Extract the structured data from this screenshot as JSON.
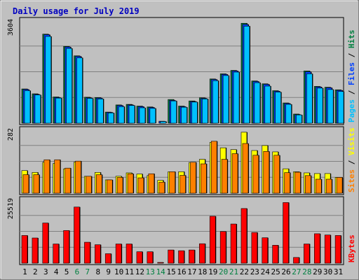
{
  "chart_data": {
    "type": "bar",
    "title": "Daily usage for July 2019",
    "categories": [
      "1",
      "2",
      "3",
      "4",
      "5",
      "6",
      "7",
      "8",
      "9",
      "10",
      "11",
      "12",
      "13",
      "14",
      "15",
      "16",
      "17",
      "18",
      "19",
      "20",
      "21",
      "22",
      "23",
      "24",
      "25",
      "26",
      "27",
      "28",
      "29",
      "30",
      "31"
    ],
    "weekend_days": [
      "6",
      "7",
      "13",
      "14",
      "20",
      "21",
      "27",
      "28"
    ],
    "grid": true,
    "panels": [
      {
        "name": "hits-files-pages",
        "scale_label": "3604",
        "ymax": 3604,
        "axis_labels": [
          {
            "text": "Pages",
            "color": "#00c0ff"
          },
          {
            "text": " / ",
            "color": "#000000"
          },
          {
            "text": "Files",
            "color": "#0040ff"
          },
          {
            "text": " / ",
            "color": "#000000"
          },
          {
            "text": "Hits",
            "color": "#008040"
          }
        ],
        "series": [
          {
            "name": "Hits",
            "color": "#008040",
            "values": [
              1200,
              1030,
              3120,
              920,
              2690,
              2360,
              910,
              900,
              390,
              640,
              660,
              600,
              570,
              0,
              830,
              600,
              780,
              890,
              1550,
              1730,
              1850,
              3500,
              1480,
              1380,
              1140,
              710,
              320,
              1830,
              1290,
              1260,
              1170
            ]
          },
          {
            "name": "Files",
            "color": "#0040ff",
            "values": [
              1180,
              1010,
              3100,
              900,
              2670,
              2340,
              890,
              880,
              380,
              620,
              640,
              580,
              550,
              70,
              800,
              580,
              760,
              870,
              1530,
              1710,
              1830,
              3460,
              1460,
              1360,
              1120,
              690,
              300,
              1800,
              1270,
              1240,
              1150
            ]
          },
          {
            "name": "Pages",
            "color": "#00c0ff",
            "values": [
              1140,
              990,
              3040,
              880,
              2620,
              2290,
              870,
              850,
              360,
              580,
              620,
              540,
              520,
              60,
              780,
              560,
              740,
              850,
              1490,
              1670,
              1790,
              3400,
              1420,
              1300,
              1090,
              660,
              290,
              1730,
              1230,
              1180,
              1110
            ]
          }
        ]
      },
      {
        "name": "visits-sites",
        "scale_label": "282",
        "ymax": 282,
        "axis_labels": [
          {
            "text": "Sites",
            "color": "#ff8000"
          },
          {
            "text": " / ",
            "color": "#000000"
          },
          {
            "text": "Visits",
            "color": "#ffff00"
          }
        ],
        "series": [
          {
            "name": "Visits",
            "color": "#ffff00",
            "values": [
              100,
              92,
              137,
              132,
              108,
              138,
              75,
              92,
              59,
              75,
              90,
              85,
              78,
              57,
              95,
              95,
              136,
              150,
              225,
              201,
              193,
              270,
              189,
              211,
              183,
              108,
              95,
              90,
              87,
              87,
              70
            ]
          },
          {
            "name": "Sites",
            "color": "#ff8000",
            "values": [
              82,
              82,
              148,
              148,
              111,
              142,
              75,
              82,
              59,
              70,
              86,
              68,
              86,
              49,
              95,
              79,
              137,
              130,
              230,
              150,
              175,
              220,
              168,
              185,
              168,
              91,
              93,
              78,
              62,
              62,
              70
            ]
          }
        ]
      },
      {
        "name": "kbytes",
        "scale_label": "25519",
        "ymax": 25519,
        "axis_labels": [
          {
            "text": "KBytes",
            "color": "#ff0000"
          }
        ],
        "series": [
          {
            "name": "KBytes",
            "color": "#ff0000",
            "values": [
              11100,
              10100,
              16100,
              7700,
              13100,
              22500,
              8400,
              7400,
              3800,
              7700,
              7700,
              4600,
              4600,
              300,
              5300,
              5000,
              5300,
              7800,
              18800,
              12700,
              15700,
              21900,
              12300,
              10200,
              7200,
              24300,
              2300,
              7700,
              11800,
              11300,
              11100
            ]
          }
        ]
      }
    ]
  }
}
